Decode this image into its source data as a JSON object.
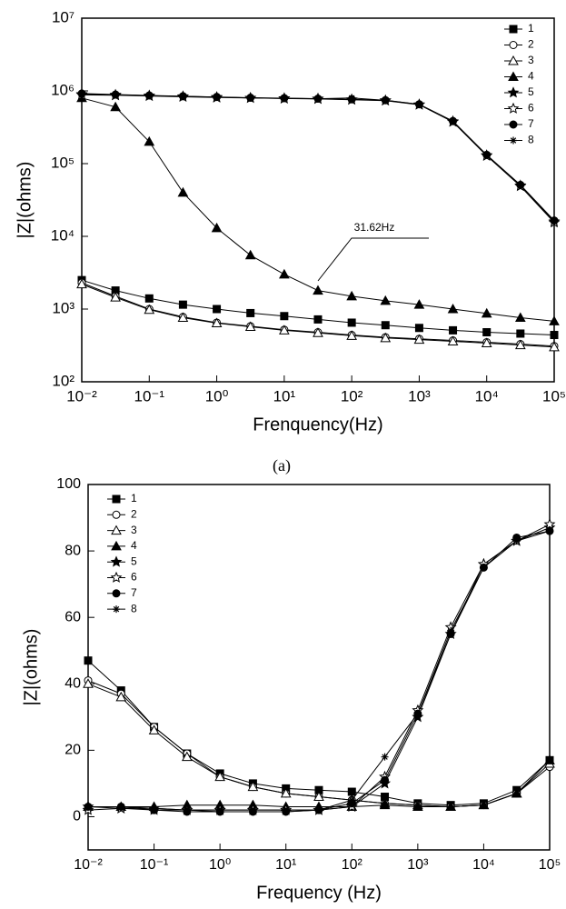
{
  "chart_data": [
    {
      "type": "line",
      "log_x": true,
      "log_y": true,
      "xlabel": "Frenquency(Hz)",
      "ylabel": "|Z|(ohms)",
      "annotation": "31.62Hz",
      "caption": "(a)",
      "legend": "upper right",
      "x": [
        0.01,
        0.0316,
        0.1,
        0.316,
        1,
        3.16,
        10,
        31.6,
        100,
        316,
        1000,
        3160,
        10000,
        31600,
        100000
      ],
      "xlim": [
        0.01,
        100000
      ],
      "xticks": [
        {
          "value": 0.01,
          "label": "10⁻²"
        },
        {
          "value": 0.1,
          "label": "10⁻¹"
        },
        {
          "value": 1,
          "label": "10⁰"
        },
        {
          "value": 10,
          "label": "10¹"
        },
        {
          "value": 100,
          "label": "10²"
        },
        {
          "value": 1000,
          "label": "10³"
        },
        {
          "value": 10000,
          "label": "10⁴"
        },
        {
          "value": 100000,
          "label": "10⁵"
        }
      ],
      "ylim": [
        100,
        10000000
      ],
      "yticks": [
        {
          "value": 100,
          "label": "10²"
        },
        {
          "value": 1000,
          "label": "10³"
        },
        {
          "value": 10000,
          "label": "10⁴"
        },
        {
          "value": 100000,
          "label": "10⁵"
        },
        {
          "value": 1000000,
          "label": "10⁶"
        },
        {
          "value": 10000000,
          "label": "10⁷"
        }
      ],
      "series": [
        {
          "name": "1",
          "color": "#000000",
          "marker": "square",
          "values": [
            2500,
            1800,
            1400,
            1150,
            1000,
            880,
            800,
            720,
            650,
            600,
            550,
            510,
            480,
            460,
            440
          ]
        },
        {
          "name": "2",
          "color": "#000000",
          "marker": "circle-open",
          "values": [
            2300,
            1500,
            1000,
            780,
            650,
            580,
            520,
            480,
            440,
            410,
            390,
            370,
            350,
            330,
            310
          ]
        },
        {
          "name": "3",
          "color": "#000000",
          "marker": "triangle-open",
          "values": [
            2200,
            1450,
            980,
            760,
            640,
            570,
            510,
            470,
            430,
            400,
            380,
            360,
            340,
            320,
            300
          ]
        },
        {
          "name": "4",
          "color": "#000000",
          "marker": "triangle",
          "values": [
            800000,
            600000,
            200000,
            40000,
            13000,
            5500,
            3000,
            1800,
            1500,
            1300,
            1150,
            1000,
            870,
            760,
            680
          ]
        },
        {
          "name": "5",
          "color": "#000000",
          "marker": "star",
          "values": [
            900000,
            880000,
            860000,
            840000,
            820000,
            800000,
            790000,
            780000,
            760000,
            740000,
            650000,
            380000,
            130000,
            50000,
            16000
          ]
        },
        {
          "name": "6",
          "color": "#000000",
          "marker": "star-open",
          "values": [
            880000,
            870000,
            850000,
            830000,
            810000,
            800000,
            785000,
            775000,
            755000,
            735000,
            645000,
            375000,
            128000,
            49000,
            15500
          ]
        },
        {
          "name": "7",
          "color": "#000000",
          "marker": "circle",
          "values": [
            920000,
            890000,
            865000,
            845000,
            825000,
            805000,
            795000,
            782000,
            765000,
            745000,
            655000,
            385000,
            132000,
            51000,
            16500
          ]
        },
        {
          "name": "8",
          "color": "#000000",
          "marker": "asterisk",
          "values": [
            910000,
            885000,
            862000,
            842000,
            822000,
            802000,
            792000,
            780000,
            800000,
            742000,
            652000,
            382000,
            131000,
            50500,
            16200
          ]
        }
      ]
    },
    {
      "type": "line",
      "log_x": true,
      "log_y": false,
      "xlabel": "Frequency (Hz)",
      "ylabel": "|Z|(ohms)",
      "legend": "upper left",
      "x": [
        0.01,
        0.0316,
        0.1,
        0.316,
        1,
        3.16,
        10,
        31.6,
        100,
        316,
        1000,
        3160,
        10000,
        31600,
        100000
      ],
      "xlim": [
        0.01,
        100000
      ],
      "xticks": [
        {
          "value": 0.01,
          "label": "10⁻²"
        },
        {
          "value": 0.1,
          "label": "10⁻¹"
        },
        {
          "value": 1,
          "label": "10⁰"
        },
        {
          "value": 10,
          "label": "10¹"
        },
        {
          "value": 100,
          "label": "10²"
        },
        {
          "value": 1000,
          "label": "10³"
        },
        {
          "value": 10000,
          "label": "10⁴"
        },
        {
          "value": 100000,
          "label": "10⁵"
        }
      ],
      "ylim": [
        -10,
        100
      ],
      "yticks": [
        0,
        20,
        40,
        60,
        80,
        100
      ],
      "series": [
        {
          "name": "1",
          "color": "#000000",
          "marker": "square",
          "values": [
            47,
            38,
            27,
            19,
            13,
            10,
            8.5,
            8,
            7.5,
            6,
            4,
            3.5,
            4,
            8,
            17
          ]
        },
        {
          "name": "2",
          "color": "#000000",
          "marker": "circle-open",
          "values": [
            41,
            37,
            27,
            19,
            12,
            9,
            7,
            6,
            5,
            4,
            3.5,
            3,
            3.5,
            7,
            15
          ]
        },
        {
          "name": "3",
          "color": "#000000",
          "marker": "triangle-open",
          "values": [
            40,
            36,
            26,
            18,
            12,
            9,
            7,
            6,
            5,
            4,
            3.5,
            3,
            3.5,
            7,
            16
          ]
        },
        {
          "name": "4",
          "color": "#000000",
          "marker": "triangle",
          "values": [
            3,
            3,
            3,
            3.5,
            3.5,
            3.5,
            3,
            3,
            3,
            3.5,
            3,
            3,
            3.5,
            7,
            17
          ]
        },
        {
          "name": "5",
          "color": "#000000",
          "marker": "star",
          "values": [
            3,
            2.5,
            2.5,
            2,
            2,
            2,
            2,
            2,
            3,
            10,
            30,
            55,
            76,
            83,
            87
          ]
        },
        {
          "name": "6",
          "color": "#000000",
          "marker": "star-open",
          "values": [
            2,
            2.5,
            2,
            2,
            2,
            2,
            2,
            2,
            3,
            12,
            32,
            57,
            76,
            83,
            88
          ]
        },
        {
          "name": "7",
          "color": "#000000",
          "marker": "circle",
          "values": [
            3,
            3,
            2,
            1.5,
            1.5,
            1.5,
            1.5,
            2,
            4,
            11,
            31,
            55,
            75,
            84,
            86
          ]
        },
        {
          "name": "8",
          "color": "#000000",
          "marker": "asterisk",
          "values": [
            3,
            3,
            2.5,
            2,
            1.5,
            1.5,
            1.5,
            2,
            5,
            18,
            31,
            56,
            75,
            83,
            86
          ]
        }
      ]
    }
  ]
}
